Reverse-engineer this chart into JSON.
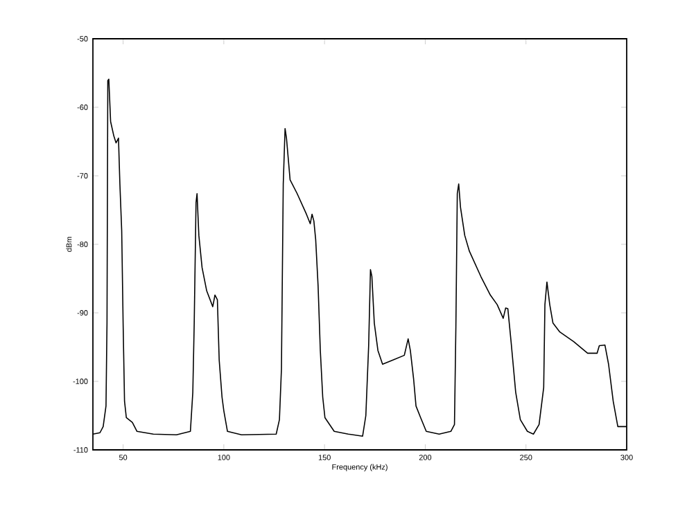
{
  "chart_data": {
    "type": "line",
    "xlabel": "Frequency (kHz)",
    "ylabel": "dBm",
    "color": "#000000",
    "xlim": [
      35,
      300
    ],
    "ylim": [
      -110,
      -50
    ],
    "xticks": [
      50,
      100,
      150,
      200,
      250,
      300
    ],
    "yticks": [
      -110,
      -100,
      -90,
      -80,
      -70,
      -60,
      -50
    ],
    "x": [
      35,
      38.5,
      40.1,
      41.5,
      42,
      42.4,
      42.9,
      43.8,
      45.4,
      46.5,
      47.7,
      48.4,
      49.3,
      50,
      50.7,
      51.6,
      54.6,
      56.9,
      65,
      76.5,
      83.4,
      84.6,
      85.3,
      86.2,
      86.7,
      87.6,
      89.2,
      91.5,
      94.5,
      95.6,
      96.8,
      97.7,
      99.1,
      100,
      101.8,
      108.8,
      126,
      127.6,
      128.6,
      129.5,
      130.4,
      131.1,
      132.9,
      136.4,
      141,
      142.9,
      143.8,
      144.7,
      145.6,
      146.8,
      147.9,
      149.1,
      150.2,
      154.8,
      161.8,
      168.9,
      170.5,
      171.9,
      172.8,
      173.5,
      174.7,
      176.5,
      178.8,
      183.9,
      189.6,
      191.5,
      192.6,
      194.2,
      195.4,
      197.7,
      200.5,
      206.9,
      212.7,
      214.5,
      215.2,
      215.9,
      216.6,
      217.5,
      219.6,
      221.9,
      227.6,
      232.3,
      235.7,
      238.7,
      239.9,
      241,
      242.6,
      244.9,
      247.2,
      250.7,
      253.7,
      256.5,
      258.8,
      259.4,
      260.4,
      261.8,
      263.4,
      266.8,
      273.7,
      280.6,
      285.3,
      286.4,
      289.2,
      291,
      293.3,
      295.6,
      300
    ],
    "values": [
      -107.7,
      -107.5,
      -106.6,
      -103.6,
      -91.5,
      -56.1,
      -55.9,
      -62.1,
      -64.2,
      -65.2,
      -64.5,
      -71.2,
      -78,
      -91.5,
      -102.9,
      -105.3,
      -106,
      -107.3,
      -107.7,
      -107.8,
      -107.3,
      -101.6,
      -91.5,
      -73.9,
      -72.6,
      -78.7,
      -83.4,
      -86.8,
      -89.1,
      -87.4,
      -88.1,
      -96.9,
      -102.3,
      -104.3,
      -107.3,
      -107.8,
      -107.7,
      -105.6,
      -98.2,
      -71.2,
      -63.1,
      -64.5,
      -70.6,
      -72.6,
      -75.6,
      -77,
      -75.6,
      -76.6,
      -79.3,
      -86.1,
      -95.5,
      -102.3,
      -105.3,
      -107.3,
      -107.7,
      -108,
      -105,
      -94.8,
      -83.7,
      -84.7,
      -91.5,
      -95.5,
      -97.5,
      -96.9,
      -96.2,
      -93.8,
      -95.5,
      -99.6,
      -103.6,
      -105.3,
      -107.3,
      -107.7,
      -107.3,
      -106.3,
      -92.1,
      -72.6,
      -71.2,
      -74.6,
      -78.7,
      -81,
      -84.7,
      -87.4,
      -88.8,
      -90.8,
      -89.3,
      -89.4,
      -94.2,
      -101.6,
      -105.6,
      -107.3,
      -107.7,
      -106.3,
      -100.9,
      -88.8,
      -85.5,
      -88.8,
      -91.5,
      -92.8,
      -94.2,
      -95.9,
      -95.9,
      -94.8,
      -94.7,
      -97.5,
      -102.9,
      -106.6,
      -106.6
    ]
  }
}
